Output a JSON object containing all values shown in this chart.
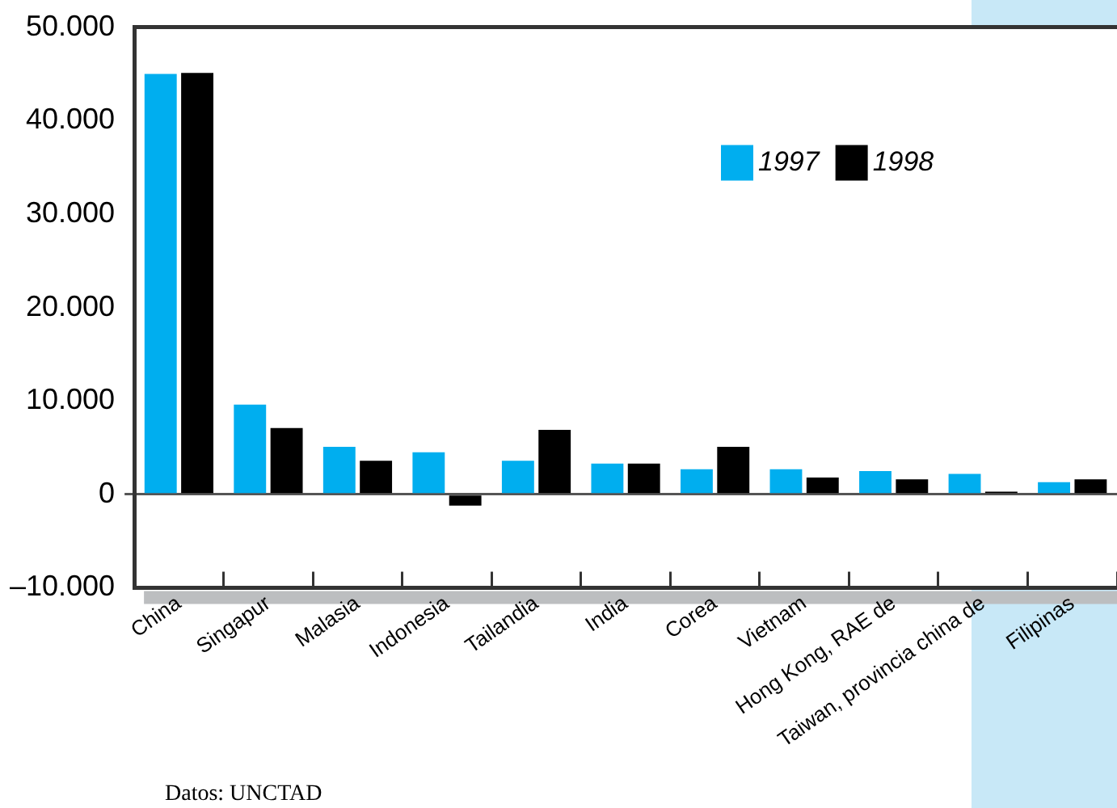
{
  "chart_data": {
    "type": "bar",
    "categories": [
      "China",
      "Singapur",
      "Malasia",
      "Indonesia",
      "Tailandia",
      "India",
      "Corea",
      "Vietnam",
      "Hong Kong, RAE de",
      "Taiwan, provincia china de",
      "Filipinas"
    ],
    "series": [
      {
        "name": "1997",
        "color": "#00aeef",
        "values": [
          45000,
          9600,
          5100,
          4500,
          3600,
          3300,
          2700,
          2700,
          2500,
          2200,
          1300
        ]
      },
      {
        "name": "1998",
        "color": "#000000",
        "values": [
          45100,
          7100,
          3600,
          -1200,
          6900,
          3300,
          5100,
          1800,
          1600,
          300,
          1600
        ]
      }
    ],
    "ylim": [
      -10000,
      50000
    ],
    "yticks": [
      {
        "value": -10000,
        "label": "–10.000"
      },
      {
        "value": 0,
        "label": "0"
      },
      {
        "value": 10000,
        "label": "10.000"
      },
      {
        "value": 20000,
        "label": "20.000"
      },
      {
        "value": 30000,
        "label": "30.000"
      },
      {
        "value": 40000,
        "label": "40.000"
      },
      {
        "value": 50000,
        "label": "50.000"
      }
    ],
    "legend": "top right",
    "annotations": [
      "Datos: UNCTAD"
    ]
  }
}
